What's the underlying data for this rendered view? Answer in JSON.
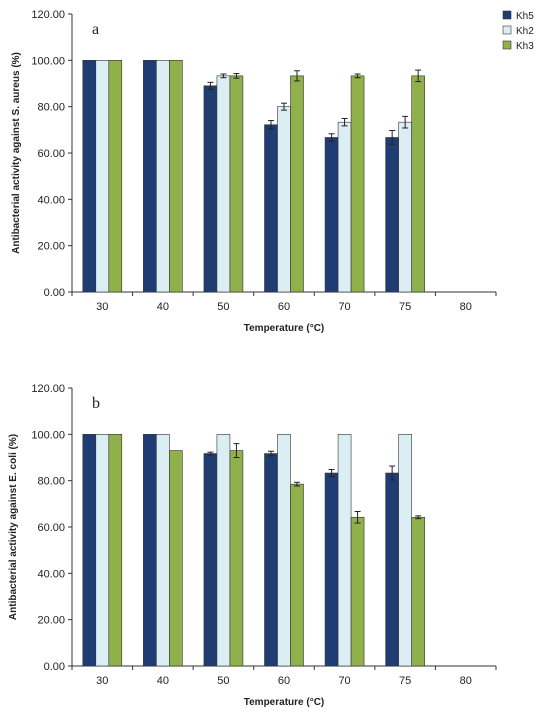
{
  "figure": {
    "panel_a_letter": "a",
    "panel_b_letter": "b"
  },
  "colors": {
    "Kh5": "#1f3d73",
    "Kh2": "#dbeef4",
    "Kh3": "#8fb04a",
    "bar_stroke": "#333333",
    "axis": "#333333"
  },
  "chart_data": [
    {
      "type": "bar",
      "panel": "a",
      "xlabel": "Temperature (°C)",
      "ylabel": "Antibacterial activity against S. aureus (%)",
      "categories": [
        "30",
        "40",
        "50",
        "60",
        "70",
        "75",
        "80"
      ],
      "ylim": [
        0,
        120
      ],
      "yticks": [
        "0.00",
        "20.00",
        "40.00",
        "60.00",
        "80.00",
        "100.00",
        "120.00"
      ],
      "legend_position": "right",
      "grid": false,
      "series": [
        {
          "name": "Kh5",
          "values": [
            100,
            100,
            89,
            72.2,
            66.7,
            66.7,
            0
          ],
          "errors": [
            0,
            0,
            1.5,
            1.8,
            1.6,
            3,
            0
          ]
        },
        {
          "name": "Kh2",
          "values": [
            100,
            100,
            93.3,
            80,
            73.3,
            73.3,
            0
          ],
          "errors": [
            0,
            0,
            0.8,
            1.5,
            1.6,
            2.5,
            0
          ]
        },
        {
          "name": "Kh3",
          "values": [
            100,
            100,
            93.3,
            93.3,
            93.3,
            93.3,
            0
          ],
          "errors": [
            0,
            0,
            1,
            2.2,
            0.8,
            2.5,
            0
          ]
        }
      ]
    },
    {
      "type": "bar",
      "panel": "b",
      "xlabel": "Temperature (°C)",
      "ylabel": "Antibacterial activity against E. coli (%)",
      "categories": [
        "30",
        "40",
        "50",
        "60",
        "70",
        "75",
        "80"
      ],
      "ylim": [
        0,
        120
      ],
      "yticks": [
        "0.00",
        "20.00",
        "40.00",
        "60.00",
        "80.00",
        "100.00",
        "120.00"
      ],
      "legend_position": "none",
      "grid": false,
      "series": [
        {
          "name": "Kh5",
          "values": [
            100,
            100,
            91.7,
            91.7,
            83.3,
            83.3,
            0
          ],
          "errors": [
            0,
            0,
            0.6,
            1,
            1.5,
            3,
            0
          ]
        },
        {
          "name": "Kh2",
          "values": [
            100,
            100,
            100,
            100,
            100,
            100,
            0
          ],
          "errors": [
            0,
            0,
            0,
            0,
            0,
            0,
            0
          ]
        },
        {
          "name": "Kh3",
          "values": [
            100,
            93,
            93,
            78.5,
            64.2,
            64.2,
            0
          ],
          "errors": [
            0,
            0,
            3,
            0.8,
            2.5,
            0.6,
            0
          ]
        }
      ]
    }
  ]
}
